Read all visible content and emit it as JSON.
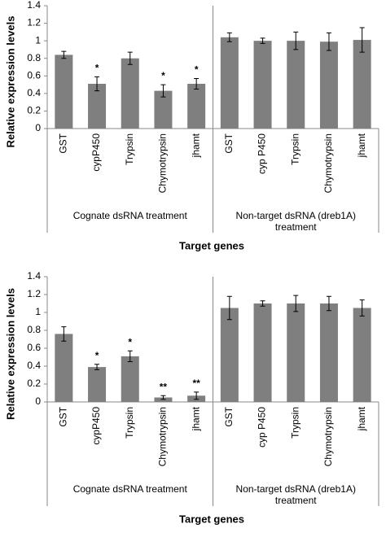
{
  "chart_data": [
    {
      "type": "bar",
      "y_label": "Relative expression levels",
      "x_label": "Target genes",
      "color": "#7f7f7f",
      "ylim": [
        0,
        1.4
      ],
      "yticks": [
        0,
        0.2,
        0.4,
        0.6,
        0.8,
        1,
        1.2,
        1.4
      ],
      "groups": [
        {
          "label": [
            "Cognate dsRNA treatment"
          ],
          "categories": [
            "GST",
            "cypP450",
            "Trypsin",
            "Chymotrypsin",
            "jhamt"
          ],
          "values": [
            0.84,
            0.51,
            0.8,
            0.43,
            0.51
          ],
          "errors": [
            0.04,
            0.08,
            0.07,
            0.07,
            0.06
          ],
          "significance": [
            null,
            "*",
            null,
            "*",
            "*"
          ]
        },
        {
          "label": [
            "Non-target dsRNA (dreb1A)",
            "treatment"
          ],
          "categories": [
            "GST",
            "cyp P450",
            "Trypsin",
            "Chymotrypsin",
            "jhamt"
          ],
          "values": [
            1.04,
            1.0,
            1.0,
            0.99,
            1.01
          ],
          "errors": [
            0.05,
            0.03,
            0.1,
            0.1,
            0.14
          ],
          "significance": [
            null,
            null,
            null,
            null,
            null
          ]
        }
      ]
    },
    {
      "type": "bar",
      "y_label": "Relative expression levels",
      "x_label": "Target genes",
      "color": "#7f7f7f",
      "ylim": [
        0,
        1.4
      ],
      "yticks": [
        0,
        0.2,
        0.4,
        0.6,
        0.8,
        1,
        1.2,
        1.4
      ],
      "groups": [
        {
          "label": [
            "Cognate dsRNA treatment"
          ],
          "categories": [
            "GST",
            "cypP450",
            "Trypsin",
            "Chymotrypsin",
            "jhamt"
          ],
          "values": [
            0.76,
            0.39,
            0.51,
            0.05,
            0.07
          ],
          "errors": [
            0.08,
            0.03,
            0.06,
            0.02,
            0.04
          ],
          "significance": [
            null,
            "*",
            "*",
            "**",
            "**"
          ]
        },
        {
          "label": [
            "Non-target dsRNA (dreb1A)",
            "treatment"
          ],
          "categories": [
            "GST",
            "cyp P450",
            "Trypsin",
            "Chymotrypsin",
            "jhamt"
          ],
          "values": [
            1.05,
            1.1,
            1.1,
            1.1,
            1.05
          ],
          "errors": [
            0.13,
            0.03,
            0.09,
            0.08,
            0.09
          ],
          "significance": [
            null,
            null,
            null,
            null,
            null
          ]
        }
      ]
    }
  ]
}
